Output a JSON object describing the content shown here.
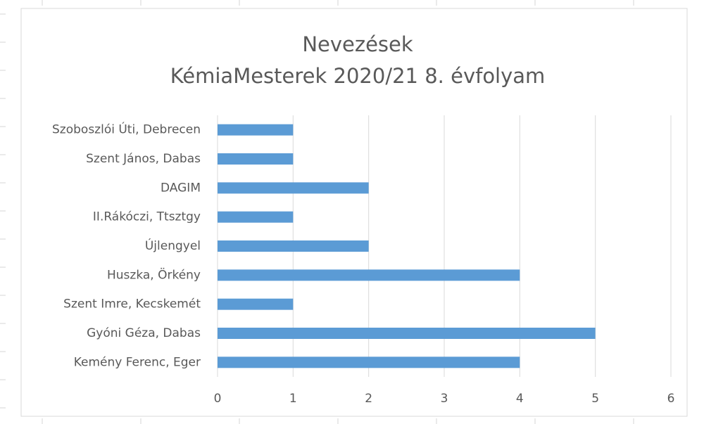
{
  "chart_data": {
    "type": "bar",
    "orientation": "horizontal",
    "title": "Nevezések",
    "subtitle": "KémiaMesterek 2020/21 8. évfolyam",
    "categories": [
      "Szoboszlói Úti, Debrecen",
      "Szent János, Dabas",
      "DAGIM",
      "II.Rákóczi, Ttsztgy",
      "Újlengyel",
      "Huszka, Örkény",
      "Szent Imre, Kecskemét",
      "Gyóni Géza, Dabas",
      "Kemény Ferenc, Eger"
    ],
    "values": [
      1,
      1,
      2,
      1,
      2,
      4,
      1,
      5,
      4
    ],
    "color": "#5b9bd5",
    "xlim": [
      0,
      6
    ],
    "xticks": [
      0,
      1,
      2,
      3,
      4,
      5,
      6
    ],
    "grid": true
  }
}
